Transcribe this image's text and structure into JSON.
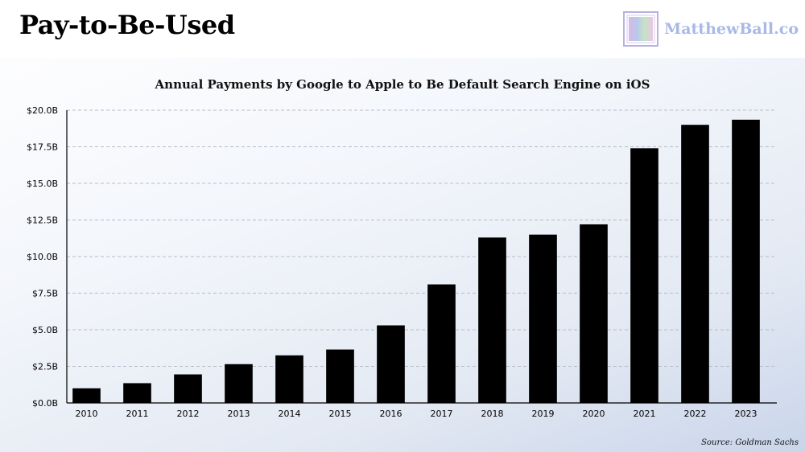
{
  "header": {
    "title": "Pay-to-Be-Used",
    "brand": "MatthewBall.co",
    "brand_logo": "matthewball-logo-icon"
  },
  "source": "Source: Goldman Sachs",
  "chart_data": {
    "type": "bar",
    "title": "Annual Payments by Google to Apple to Be Default Search Engine on iOS",
    "xlabel": "",
    "ylabel": "",
    "categories": [
      "2010",
      "2011",
      "2012",
      "2013",
      "2014",
      "2015",
      "2016",
      "2017",
      "2018",
      "2019",
      "2020",
      "2021",
      "2022",
      "2023"
    ],
    "values": [
      1.0,
      1.35,
      1.95,
      2.65,
      3.25,
      3.65,
      5.3,
      8.1,
      11.3,
      11.5,
      12.2,
      17.4,
      19.0,
      19.35
    ],
    "ylim": [
      0,
      20
    ],
    "yticks": [
      0,
      2.5,
      5,
      7.5,
      10,
      12.5,
      15,
      17.5,
      20
    ],
    "ytick_labels": [
      "$0.0B",
      "$2.5B",
      "$5.0B",
      "$7.5B",
      "$10.0B",
      "$12.5B",
      "$15.0B",
      "$17.5B",
      "$20.0B"
    ],
    "grid": true,
    "bar_color": "#000000",
    "grid_color": "#b8bcc6"
  }
}
